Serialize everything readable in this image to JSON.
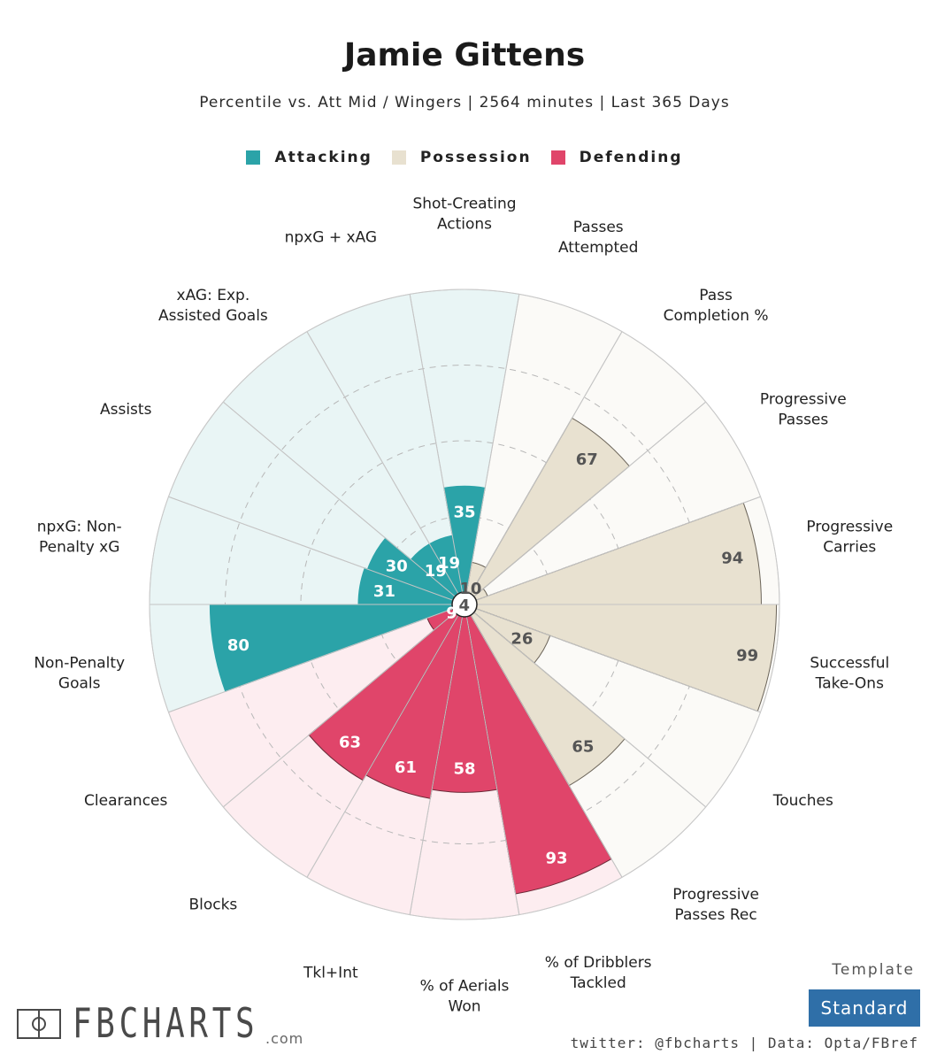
{
  "title": "Jamie Gittens",
  "subtitle": "Percentile vs. Att Mid / Wingers | 2564 minutes | Last 365 Days",
  "legend": [
    {
      "label": "Attacking",
      "color": "#2ba3a8"
    },
    {
      "label": "Possession",
      "color": "#e8e1d0"
    },
    {
      "label": "Defending",
      "color": "#e0456a"
    }
  ],
  "footer": {
    "template_label": "Template",
    "template_value": "Standard",
    "credit": "twitter: @fbcharts | Data: Opta/FBref",
    "logo_text": "FBCHARTS",
    "logo_suffix": ".com"
  },
  "chart_data": {
    "type": "polar-bar",
    "rlim": [
      0,
      100
    ],
    "gridlines": [
      25,
      50,
      75
    ],
    "grid": true,
    "categories": [
      {
        "label": [
          "Shot-Creating",
          "Actions"
        ],
        "value": 35,
        "group": "Attacking"
      },
      {
        "label": [
          "Passes",
          "Attempted"
        ],
        "value": 10,
        "group": "Possession"
      },
      {
        "label": [
          "Pass",
          "Completion %"
        ],
        "value": 67,
        "group": "Possession"
      },
      {
        "label": [
          "Progressive",
          "Passes"
        ],
        "value": 4,
        "group": "Possession"
      },
      {
        "label": [
          "Progressive",
          "Carries"
        ],
        "value": 94,
        "group": "Possession"
      },
      {
        "label": [
          "Successful",
          "Take-Ons"
        ],
        "value": 99,
        "group": "Possession"
      },
      {
        "label": [
          "Touches"
        ],
        "value": 26,
        "group": "Possession"
      },
      {
        "label": [
          "Progressive",
          "Passes Rec"
        ],
        "value": 65,
        "group": "Possession"
      },
      {
        "label": [
          "% of Dribblers",
          "Tackled"
        ],
        "value": 93,
        "group": "Defending"
      },
      {
        "label": [
          "% of Aerials",
          "Won"
        ],
        "value": 58,
        "group": "Defending"
      },
      {
        "label": [
          "Tkl+Int"
        ],
        "value": 61,
        "group": "Defending"
      },
      {
        "label": [
          "Blocks"
        ],
        "value": 63,
        "group": "Defending"
      },
      {
        "label": [
          "Clearances"
        ],
        "value": 9,
        "group": "Defending"
      },
      {
        "label": [
          "Non-Penalty",
          "Goals"
        ],
        "value": 80,
        "group": "Attacking"
      },
      {
        "label": [
          "npxG: Non-",
          "Penalty xG"
        ],
        "value": 31,
        "group": "Attacking"
      },
      {
        "label": [
          "Assists"
        ],
        "value": 30,
        "group": "Attacking"
      },
      {
        "label": [
          "xAG: Exp.",
          "Assisted Goals"
        ],
        "value": 19,
        "group": "Attacking"
      },
      {
        "label": [
          "npxG + xAG"
        ],
        "value": 19,
        "group": "Attacking"
      }
    ]
  }
}
